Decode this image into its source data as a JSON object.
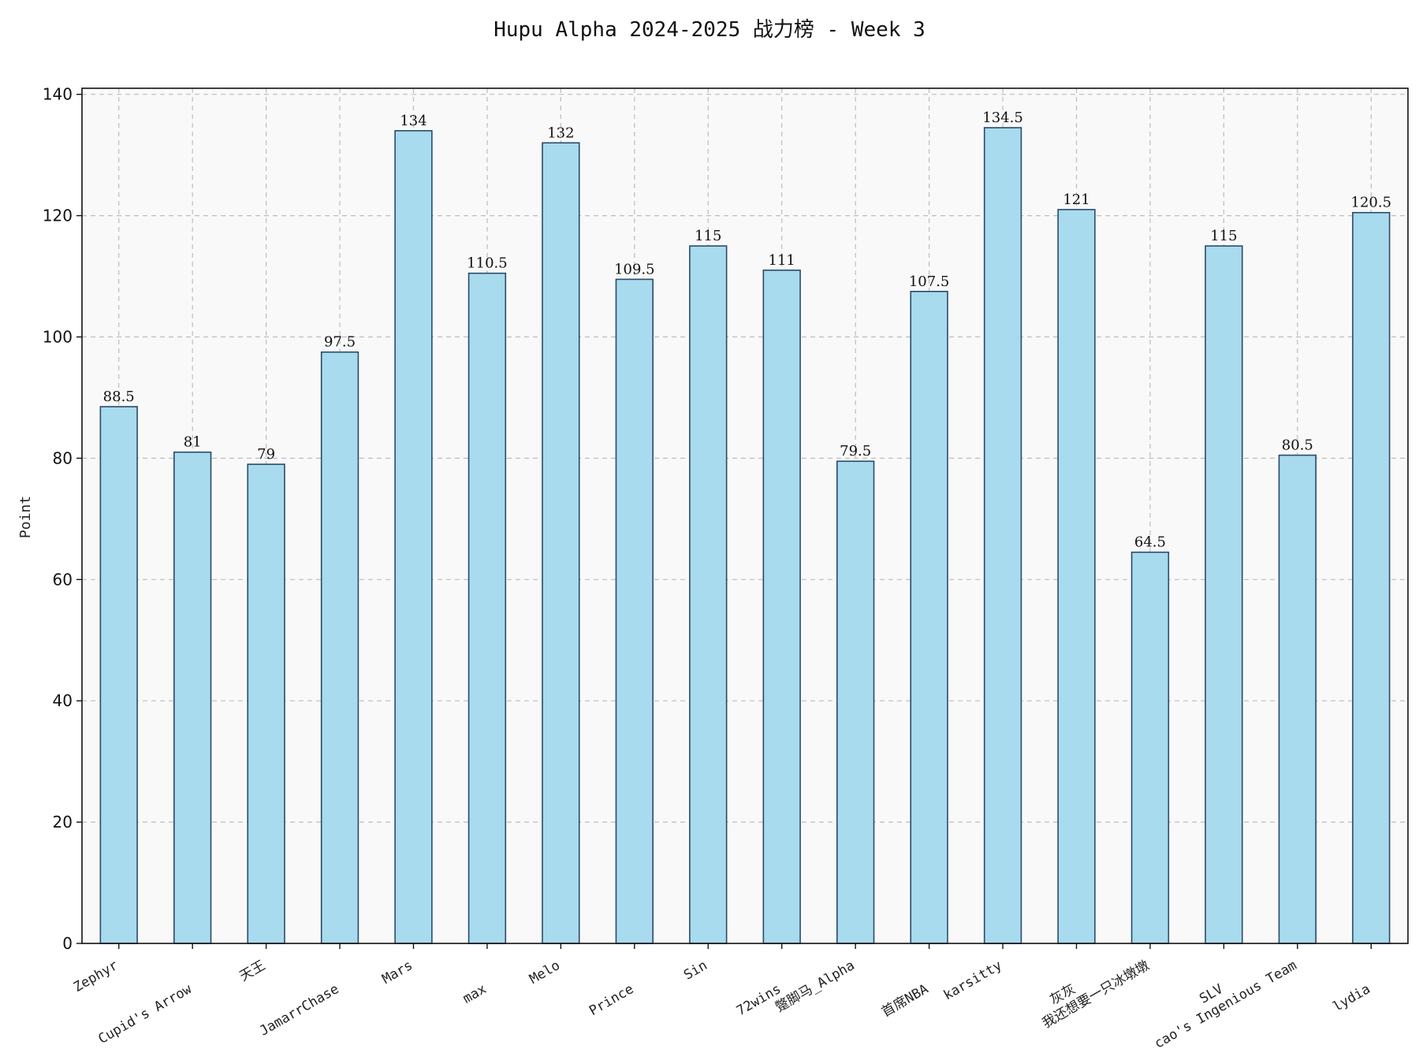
{
  "chart_data": {
    "type": "bar",
    "title": "Hupu Alpha 2024-2025 战力榜 - Week 3",
    "xlabel": "",
    "ylabel": "Point",
    "ylim": [
      0,
      141
    ],
    "yticks": [
      0,
      20,
      40,
      60,
      80,
      100,
      120,
      140
    ],
    "grid": true,
    "categories": [
      "Zephyr",
      "Cupid's Arrow",
      "天王",
      "JamarrChase",
      "Mars",
      "max",
      "Melo",
      "Prince",
      "Sin",
      "72wins",
      "蹩脚马_Alpha",
      "首席NBA",
      "karsitty",
      "灰灰",
      "我还想要一只冰墩墩",
      "SLV",
      "cao's Ingenious Team",
      "lydia"
    ],
    "values": [
      88.5,
      81,
      79,
      97.5,
      134,
      110.5,
      132,
      109.5,
      115,
      111,
      79.5,
      107.5,
      134.5,
      121,
      64.5,
      115,
      80.5,
      120.5
    ],
    "value_labels": [
      "88.5",
      "81",
      "79",
      "97.5",
      "134",
      "110.5",
      "132",
      "109.5",
      "115",
      "111",
      "79.5",
      "107.5",
      "134.5",
      "121",
      "64.5",
      "115",
      "80.5",
      "120.5"
    ],
    "colors": {
      "bar_fill": "#a8dbee",
      "bar_edge": "#2b4a6a",
      "plot_background": "#f9f9f9"
    }
  }
}
